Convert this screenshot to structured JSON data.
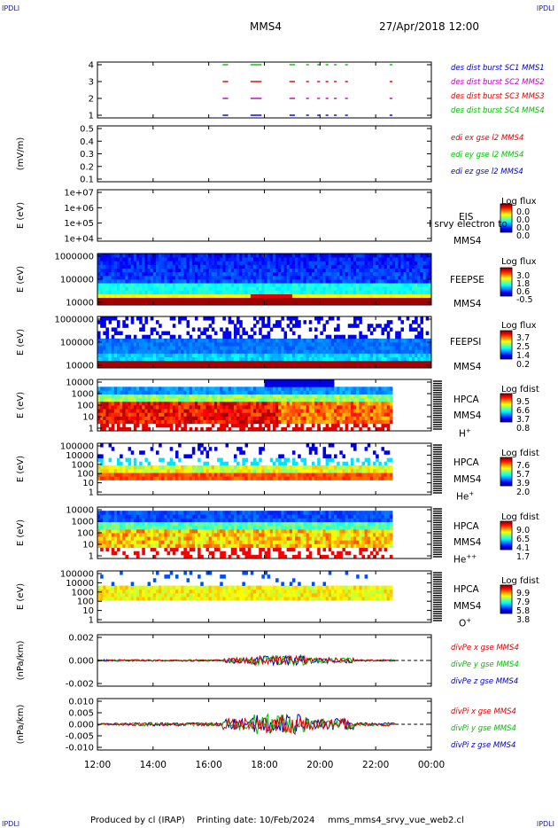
{
  "corners": {
    "tl": "IPDLI",
    "tr": "IPDLI",
    "bl": "IPDLI",
    "br": "IPDLI"
  },
  "header": {
    "spacecraft": "MMS4",
    "datetime": "27/Apr/2018 12:00"
  },
  "footer": {
    "produced_by": "Produced by cl (IRAP)",
    "printing_date": "Printing date: 10/Feb/2024",
    "file": "mms_mms4_srvy_vue_web2.cl"
  },
  "time_axis": {
    "ticks": [
      "12:00",
      "14:00",
      "16:00",
      "18:00",
      "20:00",
      "22:00",
      "00:00"
    ],
    "start_hour": 12,
    "end_hour": 24
  },
  "colors": {
    "red": "#e00000",
    "green": "#00c000",
    "blue": "#0000c0",
    "magenta": "#c000c0",
    "black": "#000000"
  },
  "chart_data": [
    {
      "type": "scatter",
      "panel": "burst",
      "ylim": [
        0.5,
        4.5
      ],
      "yticks": [
        "1",
        "2",
        "3",
        "4"
      ],
      "ylabel": "",
      "series": [
        {
          "name": "des dist burst SC1 MMS1",
          "color": "#0000c0",
          "y": 1
        },
        {
          "name": "des dist burst SC2 MMS2",
          "color": "#c000c0",
          "y": 2
        },
        {
          "name": "des dist burst SC3 MMS3",
          "color": "#e00000",
          "y": 3
        },
        {
          "name": "des dist burst SC4 MMS4",
          "color": "#00c000",
          "y": 4
        }
      ],
      "intervals": [
        [
          16.5,
          16.7
        ],
        [
          17.5,
          17.9
        ],
        [
          18.9,
          19.1
        ],
        [
          19.5,
          19.6
        ],
        [
          19.9,
          20.0
        ],
        [
          20.2,
          20.3
        ],
        [
          20.5,
          20.6
        ],
        [
          20.9,
          21.0
        ],
        [
          22.5,
          22.6
        ]
      ]
    },
    {
      "type": "line",
      "panel": "edi",
      "ylabel": "(mV/m)",
      "ylim": [
        0.05,
        0.52
      ],
      "yticks": [
        "0.1",
        "0.2",
        "0.3",
        "0.4",
        "0.5"
      ],
      "series": [
        {
          "name": "edi ex gse l2 MMS4",
          "color": "#e00000"
        },
        {
          "name": "edi ey gse l2 MMS4",
          "color": "#00c000"
        },
        {
          "name": "edi ez gse l2 MMS4",
          "color": "#0000c0"
        }
      ]
    },
    {
      "type": "heatmap",
      "panel": "eis",
      "ylabel": "E (eV)",
      "yticks": [
        "1e+04",
        "1e+05",
        "1e+06",
        "1e+07"
      ],
      "instrument": "EIS",
      "extra_label": "I srvy electron to",
      "sc": "MMS4",
      "cbar_title": "Log flux",
      "cbar_ticks": [
        "0.0",
        "0.0",
        "0.0",
        "0.0"
      ]
    },
    {
      "type": "heatmap",
      "panel": "feeps_e",
      "ylabel": "E (eV)",
      "yticks": [
        "10000",
        "100000",
        "1000000"
      ],
      "instrument": "FEEPSE",
      "sc": "MMS4",
      "cbar_title": "Log flux",
      "cbar_ticks": [
        "3.0",
        "1.8",
        "0.6",
        "-0.5"
      ]
    },
    {
      "type": "heatmap",
      "panel": "feeps_i",
      "ylabel": "E (eV)",
      "yticks": [
        "10000",
        "100000",
        "1000000"
      ],
      "instrument": "FEEPSI",
      "sc": "MMS4",
      "cbar_title": "Log flux",
      "cbar_ticks": [
        "3.7",
        "2.5",
        "1.4",
        "0.2"
      ]
    },
    {
      "type": "heatmap",
      "panel": "hpca_h",
      "ylabel": "E (eV)",
      "yticks": [
        "1",
        "10",
        "100",
        "1000",
        "10000"
      ],
      "instrument": "HPCA",
      "sc": "MMS4",
      "species": "H",
      "species_sup": "+",
      "cbar_title": "Log fdist",
      "cbar_ticks": [
        "9.5",
        "6.6",
        "3.7",
        "0.8"
      ]
    },
    {
      "type": "heatmap",
      "panel": "hpca_he",
      "ylabel": "E (eV)",
      "yticks": [
        "1",
        "10",
        "100",
        "1000",
        "10000",
        "100000"
      ],
      "instrument": "HPCA",
      "sc": "MMS4",
      "species": "He",
      "species_sup": "+",
      "cbar_title": "Log fdist",
      "cbar_ticks": [
        "7.6",
        "5.7",
        "3.9",
        "2.0"
      ]
    },
    {
      "type": "heatmap",
      "panel": "hpca_hepp",
      "ylabel": "E (eV)",
      "yticks": [
        "1",
        "10",
        "100",
        "1000",
        "10000"
      ],
      "instrument": "HPCA",
      "sc": "MMS4",
      "species": "He",
      "species_sup": "++",
      "cbar_title": "Log fdist",
      "cbar_ticks": [
        "9.0",
        "6.5",
        "4.1",
        "1.7"
      ]
    },
    {
      "type": "heatmap",
      "panel": "hpca_o",
      "ylabel": "E (eV)",
      "yticks": [
        "1",
        "10",
        "100",
        "1000",
        "10000",
        "100000"
      ],
      "instrument": "HPCA",
      "sc": "MMS4",
      "species": "O",
      "species_sup": "+",
      "cbar_title": "Log fdist",
      "cbar_ticks": [
        "9.9",
        "7.9",
        "5.8",
        "3.8"
      ]
    },
    {
      "type": "line",
      "panel": "divpe",
      "ylabel": "(nPa/km)",
      "ylim": [
        -0.0035,
        0.0035
      ],
      "yticks": [
        "-0.002",
        "0.000",
        "0.002"
      ],
      "series": [
        {
          "name": "divPe x gse MMS4",
          "color": "#e00000"
        },
        {
          "name": "divPe y gse MMS4",
          "color": "#00c000"
        },
        {
          "name": "divPe z gse MMS4",
          "color": "#0000c0"
        }
      ]
    },
    {
      "type": "line",
      "panel": "divpi",
      "ylabel": "(nPa/km)",
      "ylim": [
        -0.014,
        0.014
      ],
      "yticks": [
        "-0.010",
        "-0.005",
        "0.000",
        "0.005",
        "0.010"
      ],
      "series": [
        {
          "name": "divPi x gse MMS4",
          "color": "#e00000"
        },
        {
          "name": "divPi y gse MMS4",
          "color": "#00c000"
        },
        {
          "name": "divPi z gse MMS4",
          "color": "#0000c0"
        }
      ]
    }
  ]
}
